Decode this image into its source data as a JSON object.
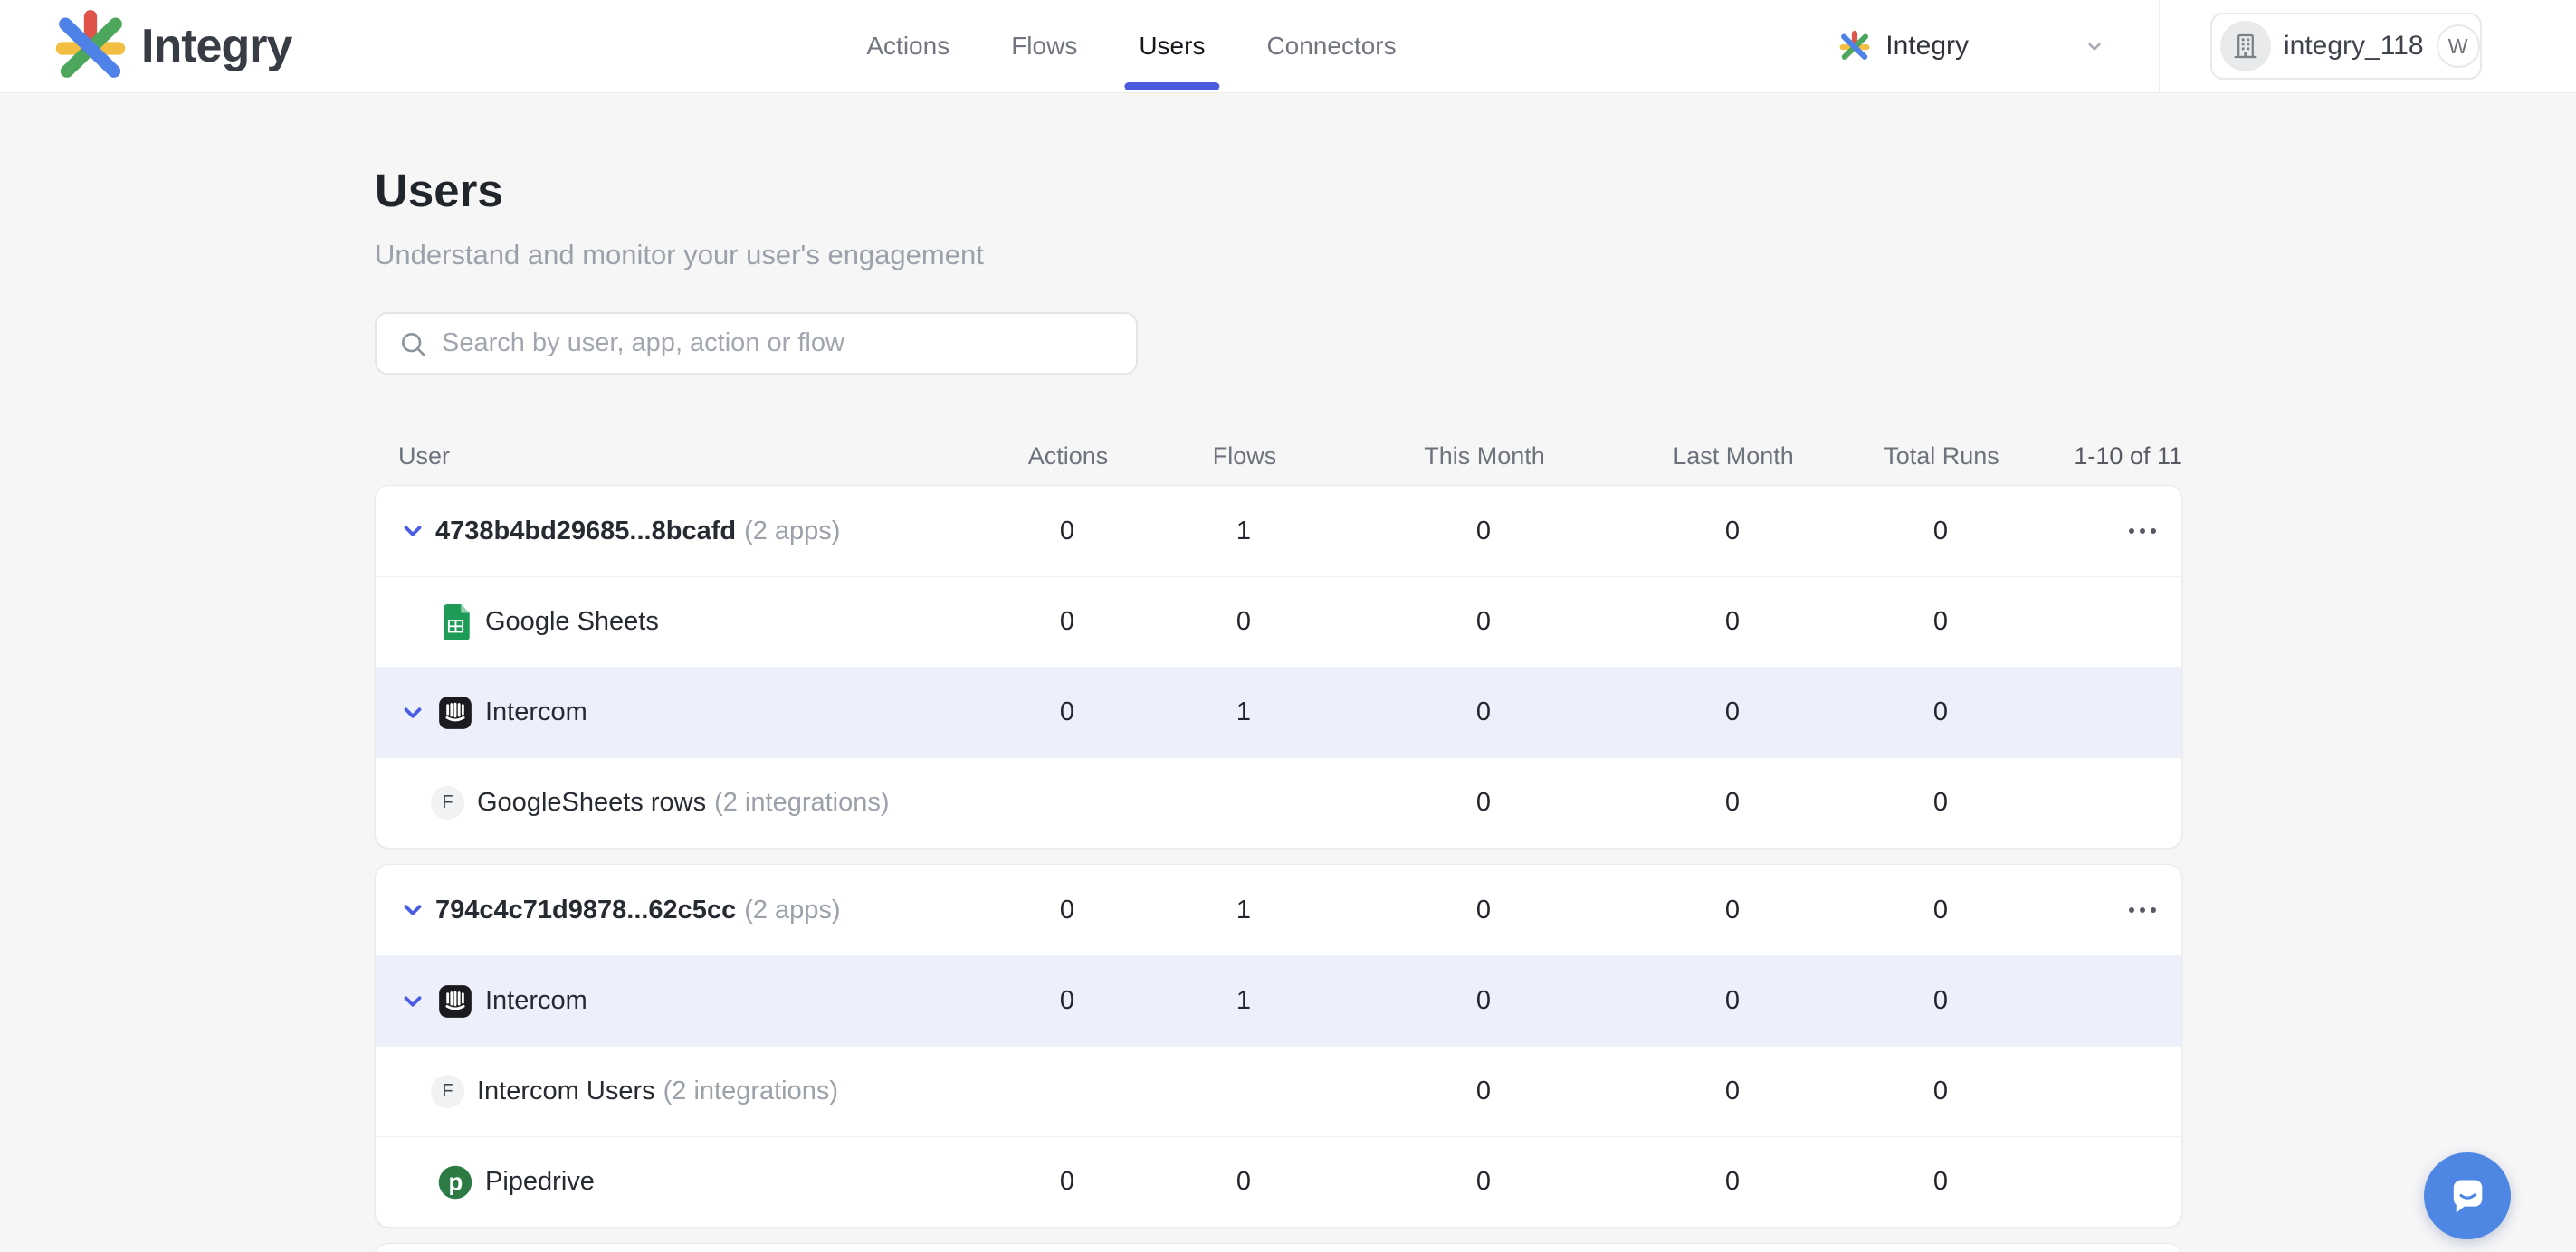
{
  "brand": {
    "name": "Integry"
  },
  "nav": {
    "items": [
      {
        "label": "Actions",
        "active": false
      },
      {
        "label": "Flows",
        "active": false
      },
      {
        "label": "Users",
        "active": true
      },
      {
        "label": "Connectors",
        "active": false
      }
    ]
  },
  "workspace": {
    "name": "Integry"
  },
  "account": {
    "name": "integry_118",
    "badge": "W"
  },
  "page": {
    "title": "Users",
    "subtitle": "Understand and monitor your user's engagement"
  },
  "search": {
    "placeholder": "Search by user, app, action or flow"
  },
  "colors": {
    "accent": "#4a5be0",
    "chevron": "#4a5be6",
    "expanded_row_bg": "#edf0fb",
    "chat_button": "#4e86e4",
    "sheets_green": "#1d9b57",
    "pipedrive_green": "#2d7a45",
    "intercom_black": "#1b1b1f"
  },
  "table": {
    "columns": [
      "User",
      "Actions",
      "Flows",
      "This Month",
      "Last Month",
      "Total Runs"
    ],
    "pagination": "1-10 of 11",
    "groups": [
      {
        "rows": [
          {
            "type": "user",
            "label": "4738b4bd29685...8bcafd",
            "suffix": "(2 apps)",
            "values": [
              "0",
              "1",
              "0",
              "0",
              "0"
            ],
            "menu": true
          },
          {
            "type": "app",
            "icon": "google-sheets",
            "label": "Google Sheets",
            "values": [
              "0",
              "0",
              "0",
              "0",
              "0"
            ]
          },
          {
            "type": "app-expanded",
            "icon": "intercom",
            "label": "Intercom",
            "values": [
              "0",
              "1",
              "0",
              "0",
              "0"
            ]
          },
          {
            "type": "flow",
            "avatar": "F",
            "label": "GoogleSheets rows",
            "suffix": "(2 integrations)",
            "values": [
              "",
              "",
              "0",
              "0",
              "0"
            ]
          }
        ]
      },
      {
        "rows": [
          {
            "type": "user",
            "label": "794c4c71d9878...62c5cc",
            "suffix": "(2 apps)",
            "values": [
              "0",
              "1",
              "0",
              "0",
              "0"
            ],
            "menu": true
          },
          {
            "type": "app-expanded",
            "icon": "intercom",
            "label": "Intercom",
            "values": [
              "0",
              "1",
              "0",
              "0",
              "0"
            ]
          },
          {
            "type": "flow",
            "avatar": "F",
            "label": "Intercom Users",
            "suffix": "(2 integrations)",
            "values": [
              "",
              "",
              "0",
              "0",
              "0"
            ]
          },
          {
            "type": "app",
            "icon": "pipedrive",
            "label": "Pipedrive",
            "values": [
              "0",
              "0",
              "0",
              "0",
              "0"
            ]
          }
        ]
      },
      {
        "rows": [],
        "partial": true
      }
    ]
  }
}
